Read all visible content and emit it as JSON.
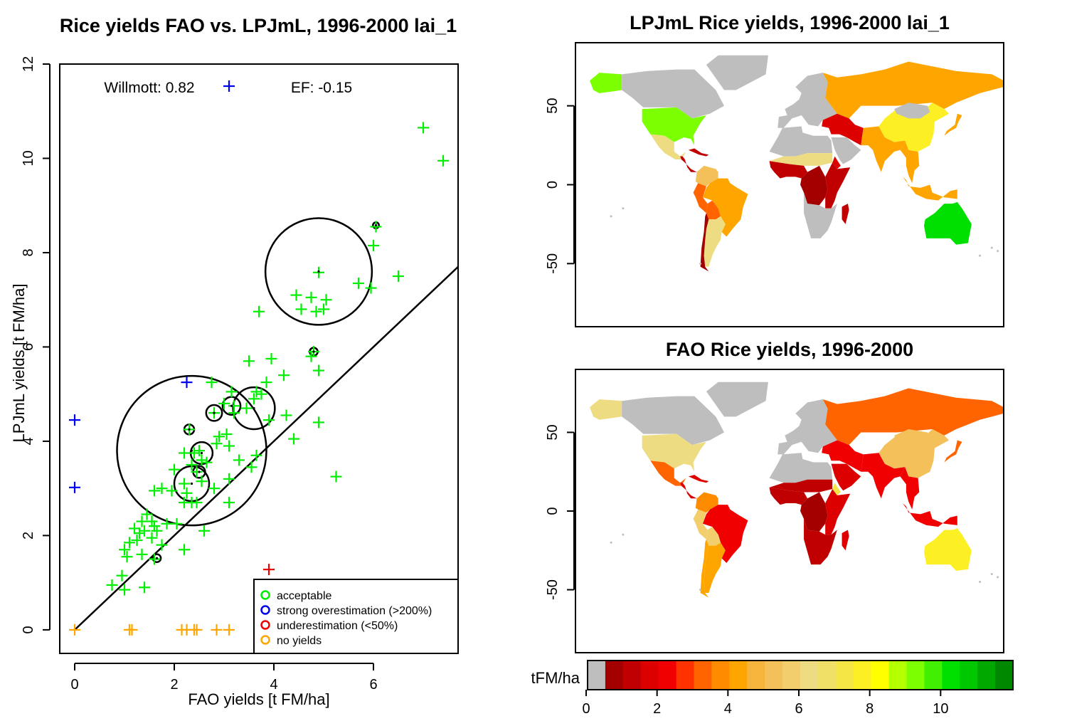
{
  "chart_data": [
    {
      "type": "scatter",
      "title": "Rice yields FAO vs. LPJmL, 1996-2000 lai_1",
      "xlabel": "FAO yields [t FM/ha]",
      "ylabel": "LPJmL yields [t FM/ha]",
      "xlim": [
        -0.3,
        7.7
      ],
      "ylim": [
        -0.5,
        12
      ],
      "xticks": [
        "0",
        "2",
        "4",
        "6"
      ],
      "yticks": [
        "0",
        "2",
        "4",
        "6",
        "8",
        "10",
        "12"
      ],
      "grid": false,
      "annotations": {
        "willmott": "Willmott: 0.82",
        "ef": "EF: -0.15"
      },
      "reference_line": {
        "slope": 1,
        "intercept": 0
      },
      "legend": {
        "position": "bottom-right",
        "entries": [
          {
            "label": "acceptable",
            "color": "#00ee00"
          },
          {
            "label": "strong overestimation (>200%)",
            "color": "#0000ee"
          },
          {
            "label": "underestimation (<50%)",
            "color": "#ee0000"
          },
          {
            "label": "no yields",
            "color": "#ffa500"
          }
        ]
      },
      "series": [
        {
          "name": "acceptable",
          "color": "#00ee00",
          "points": [
            [
              7.0,
              10.65
            ],
            [
              7.4,
              9.95
            ],
            [
              6.05,
              8.55
            ],
            [
              6.0,
              8.15
            ],
            [
              4.9,
              7.58
            ],
            [
              6.5,
              7.5
            ],
            [
              5.7,
              7.35
            ],
            [
              5.95,
              7.25
            ],
            [
              4.45,
              7.1
            ],
            [
              4.75,
              7.05
            ],
            [
              5.05,
              7.0
            ],
            [
              4.55,
              6.8
            ],
            [
              4.85,
              6.75
            ],
            [
              5.0,
              6.8
            ],
            [
              3.7,
              6.75
            ],
            [
              4.8,
              5.9
            ],
            [
              4.75,
              5.8
            ],
            [
              3.95,
              5.75
            ],
            [
              3.5,
              5.7
            ],
            [
              4.9,
              5.5
            ],
            [
              4.2,
              5.4
            ],
            [
              2.75,
              5.25
            ],
            [
              3.85,
              5.25
            ],
            [
              3.15,
              5.05
            ],
            [
              3.65,
              5.05
            ],
            [
              3.6,
              4.9
            ],
            [
              3.75,
              5.0
            ],
            [
              3.0,
              4.8
            ],
            [
              3.2,
              4.75
            ],
            [
              3.45,
              4.7
            ],
            [
              2.8,
              4.6
            ],
            [
              4.25,
              4.55
            ],
            [
              3.2,
              4.6
            ],
            [
              3.9,
              4.45
            ],
            [
              4.9,
              4.4
            ],
            [
              2.3,
              4.25
            ],
            [
              2.9,
              4.1
            ],
            [
              3.05,
              4.15
            ],
            [
              2.85,
              3.95
            ],
            [
              4.4,
              4.05
            ],
            [
              3.1,
              3.9
            ],
            [
              2.2,
              3.75
            ],
            [
              2.4,
              3.75
            ],
            [
              2.5,
              3.8
            ],
            [
              2.55,
              3.6
            ],
            [
              2.35,
              3.5
            ],
            [
              2.65,
              3.55
            ],
            [
              3.3,
              3.6
            ],
            [
              3.65,
              3.7
            ],
            [
              2.0,
              3.4
            ],
            [
              2.45,
              3.35
            ],
            [
              3.55,
              3.45
            ],
            [
              2.2,
              3.1
            ],
            [
              2.55,
              3.15
            ],
            [
              1.75,
              3.0
            ],
            [
              1.6,
              2.95
            ],
            [
              2.25,
              2.9
            ],
            [
              1.95,
              2.95
            ],
            [
              2.8,
              3.0
            ],
            [
              3.1,
              3.2
            ],
            [
              2.2,
              2.7
            ],
            [
              2.35,
              2.7
            ],
            [
              2.45,
              2.7
            ],
            [
              1.45,
              2.45
            ],
            [
              1.35,
              2.3
            ],
            [
              1.55,
              2.3
            ],
            [
              1.2,
              2.15
            ],
            [
              1.3,
              2.05
            ],
            [
              1.4,
              2.1
            ],
            [
              1.65,
              2.1
            ],
            [
              1.6,
              2.2
            ],
            [
              1.85,
              2.25
            ],
            [
              2.05,
              2.25
            ],
            [
              1.25,
              1.9
            ],
            [
              1.55,
              1.95
            ],
            [
              1.75,
              1.8
            ],
            [
              1.1,
              1.85
            ],
            [
              2.6,
              2.1
            ],
            [
              1.0,
              1.7
            ],
            [
              1.05,
              1.55
            ],
            [
              1.35,
              1.6
            ],
            [
              1.6,
              1.5
            ],
            [
              2.2,
              1.7
            ],
            [
              0.95,
              1.15
            ],
            [
              1.4,
              0.9
            ],
            [
              0.75,
              0.95
            ],
            [
              1.0,
              0.85
            ],
            [
              3.1,
              2.7
            ],
            [
              5.25,
              3.25
            ]
          ]
        },
        {
          "name": "strong overestimation (>200%)",
          "color": "#0000ee",
          "points": [
            [
              0,
              4.45
            ],
            [
              0,
              3.02
            ],
            [
              2.25,
              5.25
            ]
          ]
        },
        {
          "name": "underestimation (<50%)",
          "color": "#ee0000",
          "points": [
            [
              3.9,
              1.28
            ]
          ]
        },
        {
          "name": "no yields",
          "color": "#ffa500",
          "points": [
            [
              0,
              0
            ],
            [
              1.1,
              0
            ],
            [
              1.15,
              0
            ],
            [
              2.15,
              0
            ],
            [
              2.25,
              0
            ],
            [
              2.45,
              0
            ],
            [
              2.4,
              0
            ],
            [
              2.85,
              0
            ],
            [
              3.1,
              0
            ]
          ]
        }
      ],
      "circles": [
        {
          "x": 4.9,
          "y": 7.6,
          "r": 1.07
        },
        {
          "x": 2.35,
          "y": 3.8,
          "r": 1.5
        },
        {
          "x": 3.6,
          "y": 4.7,
          "r": 0.42
        },
        {
          "x": 2.35,
          "y": 3.1,
          "r": 0.35
        },
        {
          "x": 2.55,
          "y": 3.75,
          "r": 0.22
        },
        {
          "x": 2.8,
          "y": 4.6,
          "r": 0.16
        },
        {
          "x": 3.15,
          "y": 4.75,
          "r": 0.18
        },
        {
          "x": 2.3,
          "y": 4.25,
          "r": 0.1
        },
        {
          "x": 2.5,
          "y": 3.35,
          "r": 0.12
        },
        {
          "x": 1.65,
          "y": 1.52,
          "r": 0.08
        },
        {
          "x": 4.8,
          "y": 5.9,
          "r": 0.08
        },
        {
          "x": 6.05,
          "y": 8.58,
          "r": 0.06
        }
      ]
    },
    {
      "type": "heatmap",
      "title": "LPJmL Rice yields, 1996-2000 lai_1",
      "yticks": [
        "50",
        "0",
        "-50"
      ],
      "regions": [
        {
          "name": "Alaska",
          "value": 9
        },
        {
          "name": "Canada",
          "value": "none"
        },
        {
          "name": "Greenland",
          "value": "none"
        },
        {
          "name": "USA",
          "value": 9
        },
        {
          "name": "Mexico",
          "value": 6
        },
        {
          "name": "Central America",
          "value": 1
        },
        {
          "name": "Caribbean",
          "value": 1
        },
        {
          "name": "Colombia/Venezuela",
          "value": 5
        },
        {
          "name": "Brazil",
          "value": 4
        },
        {
          "name": "Peru",
          "value": 3
        },
        {
          "name": "Bolivia",
          "value": 3
        },
        {
          "name": "Argentina",
          "value": 6
        },
        {
          "name": "Chile",
          "value": 0.5
        },
        {
          "name": "Europe",
          "value": "none"
        },
        {
          "name": "Russia",
          "value": 4
        },
        {
          "name": "Middle East",
          "value": 1.5
        },
        {
          "name": "Arabia",
          "value": "none"
        },
        {
          "name": "India",
          "value": 4
        },
        {
          "name": "China",
          "value": 7.5
        },
        {
          "name": "Mongolia",
          "value": "none"
        },
        {
          "name": "Southeast Asia",
          "value": 4
        },
        {
          "name": "Indonesia",
          "value": 4
        },
        {
          "name": "North Africa",
          "value": "none"
        },
        {
          "name": "Sahel",
          "value": 6
        },
        {
          "name": "West Africa",
          "value": 1
        },
        {
          "name": "Central Africa",
          "value": 0.5
        },
        {
          "name": "East Africa",
          "value": 1
        },
        {
          "name": "Ethiopia",
          "value": 1.5
        },
        {
          "name": "Southern Africa",
          "value": "none"
        },
        {
          "name": "Madagascar",
          "value": 1
        },
        {
          "name": "Australia",
          "value": 10
        },
        {
          "name": "Japan",
          "value": 4
        }
      ]
    },
    {
      "type": "heatmap",
      "title": "FAO Rice yields, 1996-2000",
      "yticks": [
        "50",
        "0",
        "-50"
      ],
      "regions": [
        {
          "name": "Alaska",
          "value": 6
        },
        {
          "name": "Canada",
          "value": "none"
        },
        {
          "name": "Greenland",
          "value": "none"
        },
        {
          "name": "USA",
          "value": 6
        },
        {
          "name": "Mexico",
          "value": 3
        },
        {
          "name": "Central America",
          "value": 1.5
        },
        {
          "name": "Caribbean",
          "value": 1.5
        },
        {
          "name": "Colombia/Venezuela",
          "value": 3.5
        },
        {
          "name": "Brazil",
          "value": 2
        },
        {
          "name": "Peru",
          "value": 5.5
        },
        {
          "name": "Bolivia",
          "value": 5.5
        },
        {
          "name": "Argentina",
          "value": 4
        },
        {
          "name": "Chile",
          "value": 4
        },
        {
          "name": "Europe",
          "value": "none"
        },
        {
          "name": "Russia",
          "value": 3
        },
        {
          "name": "Middle East",
          "value": 2
        },
        {
          "name": "Arabia",
          "value": 1.5
        },
        {
          "name": "India",
          "value": 2
        },
        {
          "name": "China",
          "value": 5
        },
        {
          "name": "Mongolia",
          "value": 5
        },
        {
          "name": "Southeast Asia",
          "value": 2
        },
        {
          "name": "Indonesia",
          "value": 2
        },
        {
          "name": "North Africa",
          "value": "none"
        },
        {
          "name": "Sahel",
          "value": 1
        },
        {
          "name": "West Africa",
          "value": 1
        },
        {
          "name": "Central Africa",
          "value": 0.5
        },
        {
          "name": "East Africa",
          "value": 1.5
        },
        {
          "name": "Ethiopia",
          "value": 7
        },
        {
          "name": "Southern Africa",
          "value": 1
        },
        {
          "name": "Madagascar",
          "value": 1.5
        },
        {
          "name": "Australia",
          "value": 7.5
        },
        {
          "name": "Japan",
          "value": 3
        }
      ]
    },
    {
      "type": "colorbar",
      "label": "tFM/ha",
      "ticks": [
        "0",
        "2",
        "4",
        "6",
        "8",
        "10"
      ],
      "range": [
        0,
        11.5
      ],
      "bins": [
        {
          "from": 0,
          "to": 0.5,
          "color": "#bebebe"
        },
        {
          "from": 0.5,
          "to": 1.0,
          "color": "#a50000"
        },
        {
          "from": 1.0,
          "to": 1.5,
          "color": "#c00000"
        },
        {
          "from": 1.5,
          "to": 2.0,
          "color": "#dc0000"
        },
        {
          "from": 2.0,
          "to": 2.5,
          "color": "#f00000"
        },
        {
          "from": 2.5,
          "to": 3.0,
          "color": "#ff3200"
        },
        {
          "from": 3.0,
          "to": 3.5,
          "color": "#ff6400"
        },
        {
          "from": 3.5,
          "to": 4.0,
          "color": "#ff8c00"
        },
        {
          "from": 4.0,
          "to": 4.5,
          "color": "#ffa500"
        },
        {
          "from": 4.5,
          "to": 5.0,
          "color": "#f7b43c"
        },
        {
          "from": 5.0,
          "to": 5.5,
          "color": "#f3c05a"
        },
        {
          "from": 5.5,
          "to": 6.0,
          "color": "#f2cf6c"
        },
        {
          "from": 6.0,
          "to": 6.5,
          "color": "#eedc82"
        },
        {
          "from": 6.5,
          "to": 7.0,
          "color": "#f0e068"
        },
        {
          "from": 7.0,
          "to": 7.5,
          "color": "#f5e646"
        },
        {
          "from": 7.5,
          "to": 8.0,
          "color": "#fcf025"
        },
        {
          "from": 8.0,
          "to": 8.5,
          "color": "#ffff00"
        },
        {
          "from": 8.5,
          "to": 9.0,
          "color": "#b4ff00"
        },
        {
          "from": 9.0,
          "to": 9.5,
          "color": "#7cff00"
        },
        {
          "from": 9.5,
          "to": 10.0,
          "color": "#40f000"
        },
        {
          "from": 10.0,
          "to": 10.5,
          "color": "#00e000"
        },
        {
          "from": 10.5,
          "to": 11.0,
          "color": "#00c800"
        },
        {
          "from": 11.0,
          "to": 11.5,
          "color": "#00a800"
        },
        {
          "from": 11.5,
          "to": 12.0,
          "color": "#008800"
        }
      ]
    }
  ]
}
